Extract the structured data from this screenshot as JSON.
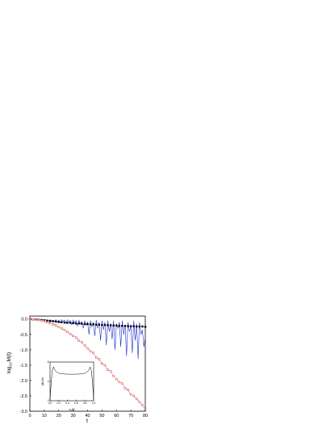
{
  "chart_data": [
    {
      "type": "line",
      "xlabel": "t",
      "ylabel": "log",
      "ylabel_subscript": "10",
      "ylabel_suffix": "M(t)",
      "xlim": [
        0,
        80
      ],
      "ylim": [
        -3.0,
        0.1
      ],
      "xticks": [
        "0",
        "10",
        "20",
        "30",
        "40",
        "50",
        "60",
        "70",
        "80"
      ],
      "yticks": [
        "0.0",
        "-0.5",
        "-1.0",
        "-1.5",
        "-2.0",
        "-2.5",
        "-3.0"
      ],
      "grid": false,
      "series": [
        {
          "style": "blue solid line",
          "color": "#1f2fd0",
          "x": [
            0,
            2,
            4,
            6,
            8,
            10,
            12,
            13,
            14,
            15,
            16,
            17,
            18,
            19,
            20,
            21,
            22,
            23,
            24,
            25,
            26,
            27,
            28,
            29,
            30,
            31,
            32,
            33,
            34,
            35,
            36,
            37,
            38,
            39,
            40,
            41,
            42,
            43,
            44,
            45,
            46,
            47,
            48,
            49,
            50,
            51,
            52,
            53,
            54,
            55,
            56,
            57,
            58,
            59,
            60,
            61,
            62,
            63,
            64,
            65,
            66,
            67,
            68,
            69,
            70,
            71,
            72,
            73,
            74,
            75,
            76,
            77,
            78,
            79,
            80
          ],
          "y": [
            0.0,
            0.0,
            -0.01,
            -0.01,
            -0.02,
            -0.02,
            -0.03,
            -0.05,
            -0.02,
            -0.06,
            -0.03,
            -0.08,
            -0.02,
            -0.1,
            -0.03,
            -0.12,
            -0.02,
            -0.08,
            -0.03,
            -0.14,
            -0.02,
            -0.1,
            -0.04,
            -0.18,
            -0.03,
            -0.12,
            -0.05,
            -0.22,
            -0.04,
            -0.15,
            -0.08,
            -0.3,
            -0.05,
            -0.2,
            -0.1,
            -0.5,
            -0.05,
            -0.25,
            -0.1,
            -0.55,
            -0.03,
            -0.3,
            -0.1,
            -0.7,
            -0.05,
            -0.35,
            -0.1,
            -0.85,
            -0.05,
            -0.4,
            -0.15,
            -0.65,
            -0.05,
            -1.0,
            -0.15,
            -0.3,
            -0.1,
            -0.9,
            -0.05,
            -0.5,
            -0.2,
            -1.2,
            -0.1,
            -0.4,
            -0.25,
            -1.1,
            -0.05,
            -0.7,
            -0.15,
            -1.3,
            -0.1,
            -0.5,
            -0.35,
            -0.9,
            -0.6
          ]
        },
        {
          "style": "black filled squares",
          "color": "#000000",
          "x": [
            0,
            2,
            4,
            6,
            8,
            10,
            12,
            14,
            16,
            18,
            20,
            22,
            24,
            26,
            28,
            30,
            32,
            34,
            36,
            38,
            40,
            42,
            44,
            46,
            48,
            50,
            52,
            54,
            56,
            58,
            60,
            62,
            64,
            66,
            68,
            70,
            72,
            74,
            76,
            78,
            80
          ],
          "y": [
            0.0,
            -0.01,
            -0.01,
            -0.02,
            -0.03,
            -0.04,
            -0.05,
            -0.06,
            -0.07,
            -0.08,
            -0.09,
            -0.1,
            -0.11,
            -0.12,
            -0.12,
            -0.13,
            -0.14,
            -0.14,
            -0.15,
            -0.16,
            -0.16,
            -0.17,
            -0.17,
            -0.18,
            -0.18,
            -0.19,
            -0.19,
            -0.2,
            -0.2,
            -0.21,
            -0.21,
            -0.22,
            -0.22,
            -0.22,
            -0.23,
            -0.23,
            -0.23,
            -0.24,
            -0.24,
            -0.24,
            -0.25
          ]
        },
        {
          "style": "red dashed line with open squares",
          "color": "#d01818",
          "x": [
            0,
            2,
            4,
            6,
            8,
            10,
            12,
            14,
            16,
            18,
            20,
            22,
            24,
            26,
            28,
            30,
            32,
            34,
            36,
            38,
            40,
            42,
            44,
            46,
            48,
            50,
            52,
            54,
            56,
            58,
            60,
            62,
            64,
            66,
            68,
            70,
            72,
            74,
            76,
            78,
            80
          ],
          "y": [
            0.0,
            -0.01,
            -0.02,
            -0.03,
            -0.05,
            -0.07,
            -0.1,
            -0.13,
            -0.17,
            -0.2,
            -0.25,
            -0.3,
            -0.35,
            -0.42,
            -0.48,
            -0.55,
            -0.6,
            -0.7,
            -0.75,
            -0.85,
            -0.95,
            -1.05,
            -1.1,
            -1.25,
            -1.3,
            -1.45,
            -1.5,
            -1.65,
            -1.7,
            -1.85,
            -1.95,
            -2.05,
            -2.1,
            -2.25,
            -2.3,
            -2.45,
            -2.5,
            -2.6,
            -2.7,
            -2.8,
            -2.95
          ]
        }
      ]
    },
    {
      "type": "line",
      "xlabel": "n",
      "xlabel_sub": "0",
      "xlabel_suffix": "/N",
      "ylabel": "∆B/2π",
      "xlim": [
        0.0,
        1.0
      ],
      "ylim": [
        0,
        8
      ],
      "xticks": [
        "0.0",
        "0.2",
        "0.4",
        "0.6",
        "0.8",
        "1.0"
      ],
      "yticks": [
        "0",
        "4",
        "8"
      ],
      "series": [
        {
          "style": "black line",
          "color": "#000000",
          "x": [
            0.0,
            0.02,
            0.05,
            0.08,
            0.12,
            0.16,
            0.2,
            0.25,
            0.3,
            0.35,
            0.4,
            0.45,
            0.5,
            0.55,
            0.6,
            0.65,
            0.7,
            0.75,
            0.8,
            0.84,
            0.88,
            0.92,
            0.95,
            0.98,
            1.0
          ],
          "y": [
            0.2,
            3.0,
            6.2,
            7.0,
            6.2,
            5.9,
            5.7,
            5.6,
            5.55,
            5.5,
            5.5,
            5.5,
            5.45,
            5.5,
            5.5,
            5.5,
            5.55,
            5.6,
            5.7,
            5.9,
            6.2,
            7.0,
            6.2,
            3.0,
            0.2
          ]
        }
      ]
    }
  ]
}
